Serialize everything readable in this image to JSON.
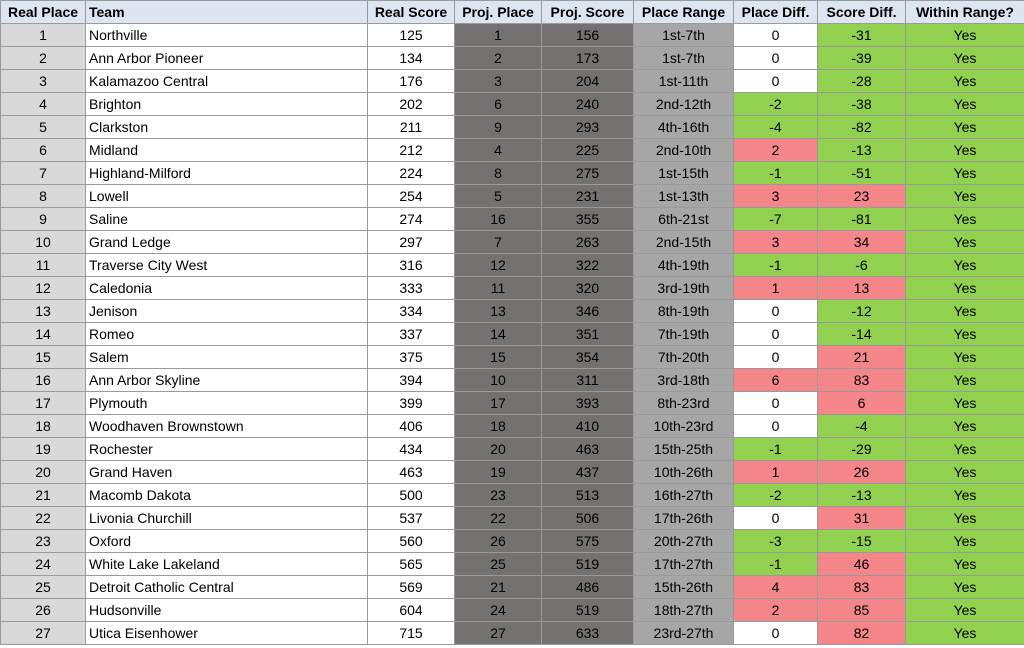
{
  "table": {
    "header": [
      "Real Place",
      "Team",
      "Real Score",
      "Proj. Place",
      "Proj. Score",
      "Place Range",
      "Place Diff.",
      "Score Diff.",
      "Within Range?"
    ],
    "rows": [
      [
        1,
        "Northville",
        125,
        1,
        156,
        "1st-7th",
        0,
        -31,
        "Yes"
      ],
      [
        2,
        "Ann Arbor Pioneer",
        134,
        2,
        173,
        "1st-7th",
        0,
        -39,
        "Yes"
      ],
      [
        3,
        "Kalamazoo Central",
        176,
        3,
        204,
        "1st-11th",
        0,
        -28,
        "Yes"
      ],
      [
        4,
        "Brighton",
        202,
        6,
        240,
        "2nd-12th",
        -2,
        -38,
        "Yes"
      ],
      [
        5,
        "Clarkston",
        211,
        9,
        293,
        "4th-16th",
        -4,
        -82,
        "Yes"
      ],
      [
        6,
        "Midland",
        212,
        4,
        225,
        "2nd-10th",
        2,
        -13,
        "Yes"
      ],
      [
        7,
        "Highland-Milford",
        224,
        8,
        275,
        "1st-15th",
        -1,
        -51,
        "Yes"
      ],
      [
        8,
        "Lowell",
        254,
        5,
        231,
        "1st-13th",
        3,
        23,
        "Yes"
      ],
      [
        9,
        "Saline",
        274,
        16,
        355,
        "6th-21st",
        -7,
        -81,
        "Yes"
      ],
      [
        10,
        "Grand Ledge",
        297,
        7,
        263,
        "2nd-15th",
        3,
        34,
        "Yes"
      ],
      [
        11,
        "Traverse City West",
        316,
        12,
        322,
        "4th-19th",
        -1,
        -6,
        "Yes"
      ],
      [
        12,
        "Caledonia",
        333,
        11,
        320,
        "3rd-19th",
        1,
        13,
        "Yes"
      ],
      [
        13,
        "Jenison",
        334,
        13,
        346,
        "8th-19th",
        0,
        -12,
        "Yes"
      ],
      [
        14,
        "Romeo",
        337,
        14,
        351,
        "7th-19th",
        0,
        -14,
        "Yes"
      ],
      [
        15,
        "Salem",
        375,
        15,
        354,
        "7th-20th",
        0,
        21,
        "Yes"
      ],
      [
        16,
        "Ann Arbor Skyline",
        394,
        10,
        311,
        "3rd-18th",
        6,
        83,
        "Yes"
      ],
      [
        17,
        "Plymouth",
        399,
        17,
        393,
        "8th-23rd",
        0,
        6,
        "Yes"
      ],
      [
        18,
        "Woodhaven Brownstown",
        406,
        18,
        410,
        "10th-23rd",
        0,
        -4,
        "Yes"
      ],
      [
        19,
        "Rochester",
        434,
        20,
        463,
        "15th-25th",
        -1,
        -29,
        "Yes"
      ],
      [
        20,
        "Grand Haven",
        463,
        19,
        437,
        "10th-26th",
        1,
        26,
        "Yes"
      ],
      [
        21,
        "Macomb Dakota",
        500,
        23,
        513,
        "16th-27th",
        -2,
        -13,
        "Yes"
      ],
      [
        22,
        "Livonia Churchill",
        537,
        22,
        506,
        "17th-26th",
        0,
        31,
        "Yes"
      ],
      [
        23,
        "Oxford",
        560,
        26,
        575,
        "20th-27th",
        -3,
        -15,
        "Yes"
      ],
      [
        24,
        "White Lake Lakeland",
        565,
        25,
        519,
        "17th-27th",
        -1,
        46,
        "Yes"
      ],
      [
        25,
        "Detroit Catholic Central",
        569,
        21,
        486,
        "15th-26th",
        4,
        83,
        "Yes"
      ],
      [
        26,
        "Hudsonville",
        604,
        24,
        519,
        "18th-27th",
        2,
        85,
        "Yes"
      ],
      [
        27,
        "Utica Eisenhower",
        715,
        27,
        633,
        "23rd-27th",
        0,
        82,
        "Yes"
      ]
    ]
  }
}
